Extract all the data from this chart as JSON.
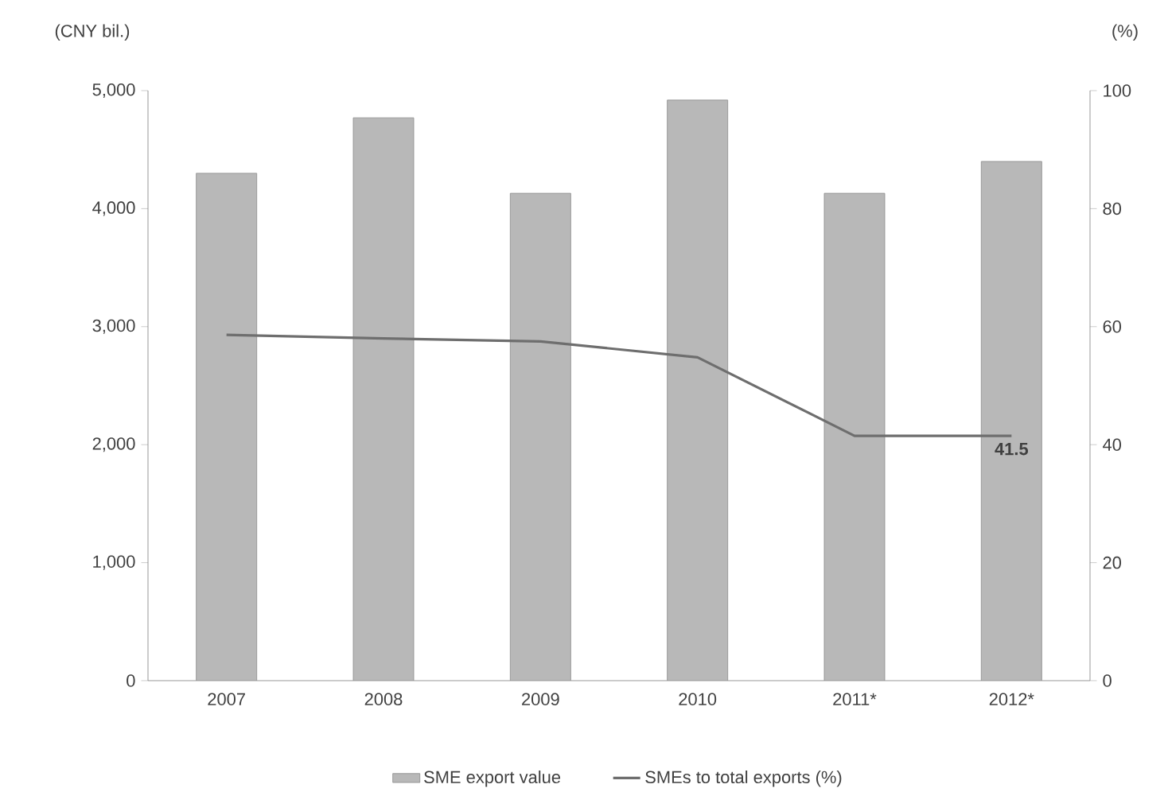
{
  "chart_data": {
    "type": "bar",
    "ylabel": "(CNY bil.)",
    "y2label": "(%)",
    "categories": [
      "2007",
      "2008",
      "2009",
      "2010",
      "2011*",
      "2012*"
    ],
    "series": [
      {
        "name": "SME export value",
        "color": "#b8b8b8",
        "values": [
          4300,
          4770,
          4130,
          4920,
          4130,
          4400
        ]
      },
      {
        "name": "SMEs to total exports (%)",
        "type": "line",
        "axis": "y2",
        "color": "#6e6e6e",
        "values": [
          58.6,
          58.0,
          57.5,
          54.8,
          41.5,
          41.5
        ],
        "value_labels": [
          null,
          null,
          null,
          null,
          null,
          "41.5"
        ]
      }
    ],
    "ylim": [
      0,
      5000
    ],
    "yticks": [
      0,
      {
        "value": 1000,
        "label": "1,000"
      },
      {
        "value": 2000,
        "label": "2,000"
      },
      {
        "value": 3000,
        "label": "3,000"
      },
      {
        "value": 4000,
        "label": "4,000"
      },
      {
        "value": 5000,
        "label": "5,000"
      }
    ],
    "y2lim": [
      0,
      100
    ],
    "y2ticks": [
      0,
      20,
      40,
      60,
      80,
      100
    ],
    "legend": "bottom"
  }
}
